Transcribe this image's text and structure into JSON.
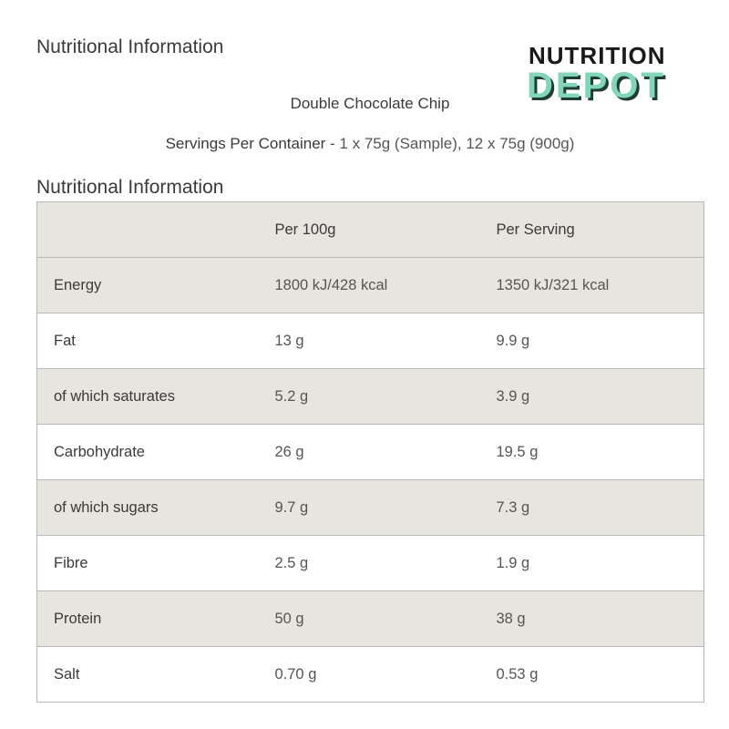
{
  "heading_top": "Nutritional Information",
  "logo": {
    "line1": "NUTRITION",
    "line2": "DEPOT",
    "color_dark": "#1a1a1a",
    "color_accent": "#7fd6b8"
  },
  "product_name": "Double Chocolate Chip",
  "servings": {
    "label": "Servings Per Container",
    "value": " - 1 x 75g (Sample), 12 x 75g (900g)"
  },
  "table_title": "Nutritional Information",
  "table": {
    "headers": [
      "",
      "Per 100g",
      "Per Serving"
    ],
    "rows": [
      [
        "Energy",
        "1800 kJ/428 kcal",
        "1350 kJ/321 kcal"
      ],
      [
        "Fat",
        "13 g",
        "9.9 g"
      ],
      [
        "of which saturates",
        "5.2 g",
        "3.9 g"
      ],
      [
        "Carbohydrate",
        "26 g",
        "19.5 g"
      ],
      [
        "of which sugars",
        "9.7 g",
        "7.3 g"
      ],
      [
        "Fibre",
        "2.5 g",
        "1.9 g"
      ],
      [
        "Protein",
        "50 g",
        "38 g"
      ],
      [
        "Salt",
        "0.70 g",
        "0.53 g"
      ]
    ]
  }
}
